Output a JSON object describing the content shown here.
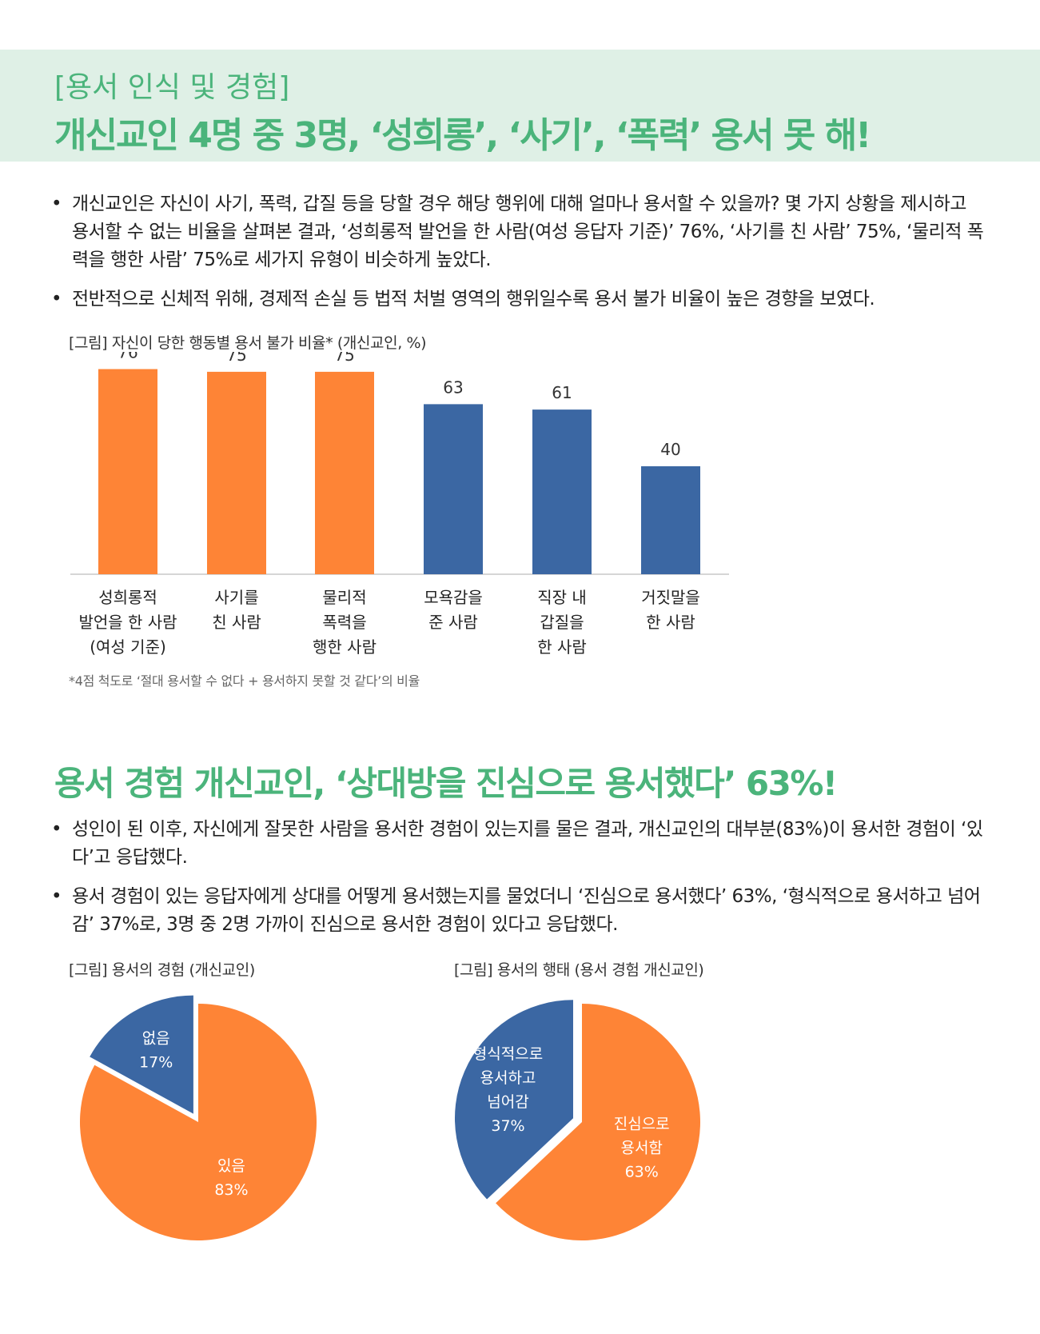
{
  "header": {
    "kicker": "[용서 인식 및 경험]",
    "headline": "개신교인 4명 중 3명, ‘성희롱’, ‘사기’, ‘폭력’ 용서 못 해!"
  },
  "section1": {
    "bullets": [
      "개신교인은 자신이 사기, 폭력, 갑질 등을 당할 경우 해당 행위에 대해 얼마나 용서할 수 있을까? 몇 가지 상황을 제시하고 용서할 수 없는 비율을 살펴본 결과, ‘성희롱적 발언을 한 사람(여성 응답자 기준)’ 76%, ‘사기를 친 사람’ 75%, ‘물리적 폭력을 행한 사람’ 75%로 세가지 유형이 비슷하게 높았다.",
      "전반적으로 신체적 위해, 경제적 손실 등 법적 처벌 영역의 행위일수록 용서 불가 비율이 높은 경향을 보였다."
    ],
    "figure_caption": "[그림] 자신이 당한 행동별 용서 불가 비율* (개신교인, %)",
    "footnote": "*4점 척도로 ‘절대 용서할 수 없다 + 용서하지 못할 것 같다’의 비율"
  },
  "section2": {
    "title": "용서 경험 개신교인, ‘상대방을 진심으로 용서했다’ 63%!",
    "bullets": [
      "성인이 된 이후, 자신에게 잘못한 사람을 용서한 경험이 있는지를 물은 결과, 개신교인의 대부분(83%)이 용서한 경험이 ‘있다’고 응답했다.",
      "용서 경험이 있는 응답자에게 상대를 어떻게 용서했는지를 물었더니 ‘진심으로 용서했다’ 63%, ‘형식적으로 용서하고 넘어감’ 37%로, 3명 중 2명 가까이 진심으로 용서한 경험이 있다고 응답했다."
    ],
    "pie1_caption": "[그림] 용서의 경험 (개신교인)",
    "pie2_caption": "[그림] 용서의 행태 (용서 경험 개신교인)"
  },
  "colors": {
    "accent_green": "#4bb47b",
    "header_band": "#dff0e6",
    "orange": "#fe8436",
    "blue": "#3b67a3"
  },
  "chart_data": [
    {
      "type": "bar",
      "categories": [
        [
          "성희롱적",
          "발언을 한 사람",
          "(여성 기준)"
        ],
        [
          "사기를",
          "친 사람"
        ],
        [
          "물리적",
          "폭력을",
          "행한 사람"
        ],
        [
          "모욕감을",
          "준 사람"
        ],
        [
          "직장 내",
          "갑질을",
          "한 사람"
        ],
        [
          "거짓말을",
          "한 사람"
        ]
      ],
      "values": [
        76,
        75,
        75,
        63,
        61,
        40
      ],
      "bar_colors": [
        "#fe8436",
        "#fe8436",
        "#fe8436",
        "#3b67a3",
        "#3b67a3",
        "#3b67a3"
      ],
      "ylim": [
        0,
        80
      ],
      "grid": false
    },
    {
      "type": "pie",
      "slices": [
        {
          "label": "없음",
          "value": 17,
          "value_label": "17%",
          "color": "#3b67a3",
          "exploded": true
        },
        {
          "label": "있음",
          "value": 83,
          "value_label": "83%",
          "color": "#fe8436",
          "exploded": false
        }
      ]
    },
    {
      "type": "pie",
      "slices": [
        {
          "label": "진심으로 용서함",
          "label_lines": [
            "진심으로",
            "용서함"
          ],
          "value": 63,
          "value_label": "63%",
          "color": "#fe8436",
          "exploded": false
        },
        {
          "label": "형식적으로 용서하고 넘어감",
          "label_lines": [
            "형식적으로",
            "용서하고",
            "넘어감"
          ],
          "value": 37,
          "value_label": "37%",
          "color": "#3b67a3",
          "exploded": true
        }
      ]
    }
  ]
}
